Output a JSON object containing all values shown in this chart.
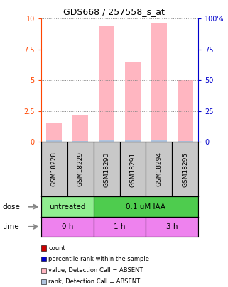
{
  "title": "GDS668 / 257558_s_at",
  "samples": [
    "GSM18228",
    "GSM18229",
    "GSM18290",
    "GSM18291",
    "GSM18294",
    "GSM18295"
  ],
  "pink_bars": [
    1.6,
    2.2,
    9.4,
    6.5,
    9.7,
    5.0
  ],
  "blue_bars": [
    0.12,
    0.08,
    0.15,
    0.12,
    0.18,
    0.1
  ],
  "ylim": [
    0,
    10
  ],
  "yticks": [
    0,
    2.5,
    5,
    7.5,
    10
  ],
  "yticklabels_left": [
    "0",
    "2.5",
    "5",
    "7.5",
    "10"
  ],
  "yticklabels_right": [
    "0",
    "25",
    "50",
    "75",
    "100%"
  ],
  "dose_data": [
    {
      "text": "untreated",
      "start": 0,
      "end": 2,
      "color": "#90EE90"
    },
    {
      "text": "0.1 uM IAA",
      "start": 2,
      "end": 6,
      "color": "#4ECC4E"
    }
  ],
  "time_data": [
    {
      "text": "0 h",
      "start": 0,
      "end": 2
    },
    {
      "text": "1 h",
      "start": 2,
      "end": 4
    },
    {
      "text": "3 h",
      "start": 4,
      "end": 6
    }
  ],
  "legend_items": [
    {
      "color": "#CC0000",
      "label": "count"
    },
    {
      "color": "#0000CC",
      "label": "percentile rank within the sample"
    },
    {
      "color": "#FFB6C1",
      "label": "value, Detection Call = ABSENT"
    },
    {
      "color": "#B0C4DE",
      "label": "rank, Detection Call = ABSENT"
    }
  ],
  "bar_width": 0.6,
  "pink_color": "#FFB6C1",
  "light_blue_color": "#B0C4DE",
  "axis_left_color": "#FF4500",
  "axis_right_color": "#0000CC",
  "grid_color": "#888888",
  "bg_color": "#FFFFFF",
  "sample_box_color": "#C8C8C8",
  "time_box_color": "#EE82EE"
}
